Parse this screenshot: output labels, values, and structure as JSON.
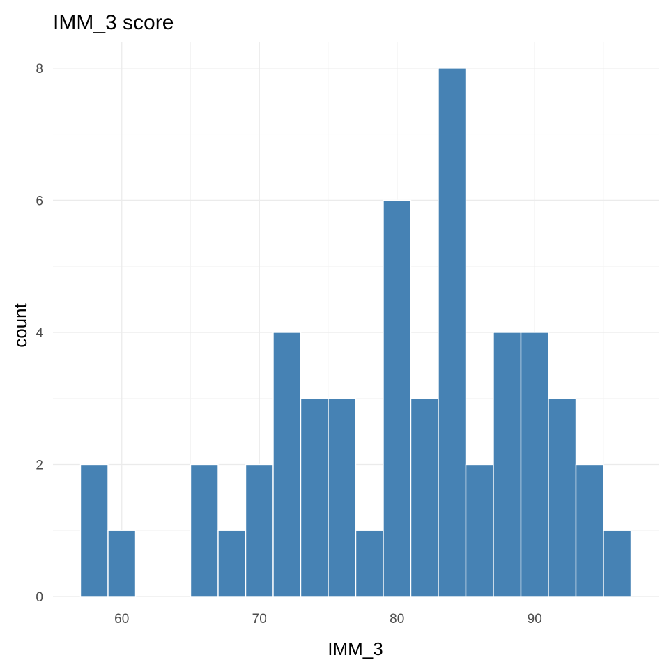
{
  "chart_data": {
    "type": "bar",
    "title": "IMM_3 score",
    "xlabel": "IMM_3",
    "ylabel": "count",
    "bin_width": 2,
    "bins": [
      {
        "x0": 57,
        "x1": 59,
        "count": 2
      },
      {
        "x0": 59,
        "x1": 61,
        "count": 1
      },
      {
        "x0": 61,
        "x1": 63,
        "count": 0
      },
      {
        "x0": 63,
        "x1": 65,
        "count": 0
      },
      {
        "x0": 65,
        "x1": 67,
        "count": 2
      },
      {
        "x0": 67,
        "x1": 69,
        "count": 1
      },
      {
        "x0": 69,
        "x1": 71,
        "count": 2
      },
      {
        "x0": 71,
        "x1": 73,
        "count": 4
      },
      {
        "x0": 73,
        "x1": 75,
        "count": 3
      },
      {
        "x0": 75,
        "x1": 77,
        "count": 3
      },
      {
        "x0": 77,
        "x1": 79,
        "count": 1
      },
      {
        "x0": 79,
        "x1": 81,
        "count": 6
      },
      {
        "x0": 81,
        "x1": 83,
        "count": 3
      },
      {
        "x0": 83,
        "x1": 85,
        "count": 8
      },
      {
        "x0": 85,
        "x1": 87,
        "count": 2
      },
      {
        "x0": 87,
        "x1": 89,
        "count": 4
      },
      {
        "x0": 89,
        "x1": 91,
        "count": 4
      },
      {
        "x0": 91,
        "x1": 93,
        "count": 3
      },
      {
        "x0": 93,
        "x1": 95,
        "count": 2
      },
      {
        "x0": 95,
        "x1": 97,
        "count": 1
      }
    ],
    "xlim": [
      55,
      99
    ],
    "ylim": [
      0,
      8.4
    ],
    "x_ticks": [
      60,
      70,
      80,
      90
    ],
    "x_tick_labels": [
      "60",
      "70",
      "80",
      "90"
    ],
    "y_ticks": [
      0,
      2,
      4,
      6,
      8
    ],
    "y_tick_labels": [
      "0",
      "2",
      "4",
      "6",
      "8"
    ],
    "grid": true,
    "legend": "none",
    "bar_color": "#4682B4",
    "background_color": "#FFFFFF"
  }
}
